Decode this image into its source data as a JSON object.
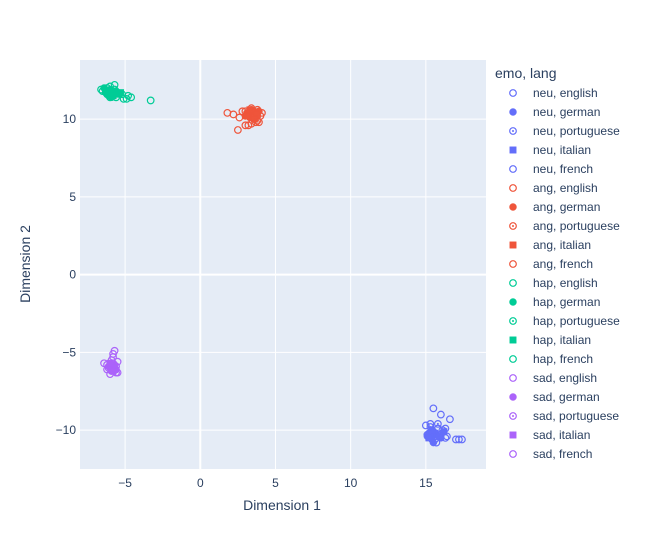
{
  "chart_data": {
    "type": "scatter",
    "title": "",
    "xlabel": "Dimension 1",
    "ylabel": "Dimension 2",
    "xlim": [
      -8,
      19
    ],
    "ylim": [
      -12.5,
      13.8
    ],
    "x_ticks": [
      -5,
      0,
      5,
      10,
      15
    ],
    "y_ticks": [
      -10,
      -5,
      0,
      5,
      10
    ],
    "x_tick_labels": [
      "−5",
      "0",
      "5",
      "10",
      "15"
    ],
    "y_tick_labels": [
      "−10",
      "−5",
      "0",
      "5",
      "10"
    ],
    "grid": true,
    "legend_title": "emo, lang",
    "legend_position": "right",
    "series": [
      {
        "name": "neu, english",
        "color": "#636efa",
        "symbol": "circle-open",
        "x": [
          15.5,
          16.0,
          16.6,
          17.2,
          17.4,
          15.3,
          15.8,
          15.1,
          16.3,
          15.6
        ],
        "y": [
          -8.6,
          -9.0,
          -9.3,
          -10.6,
          -10.6,
          -9.6,
          -9.9,
          -10.3,
          -10.5,
          -10.6
        ]
      },
      {
        "name": "neu, german",
        "color": "#636efa",
        "symbol": "circle",
        "x": [
          15.1,
          15.4,
          15.7,
          16.0,
          15.2,
          15.5
        ],
        "y": [
          -10.4,
          -10.6,
          -10.3,
          -10.5,
          -10.2,
          -10.8
        ]
      },
      {
        "name": "neu, portuguese",
        "color": "#636efa",
        "symbol": "circle-open-dot",
        "x": [
          15.3,
          15.8,
          16.1,
          15.6,
          16.3
        ],
        "y": [
          -9.8,
          -9.6,
          -10.0,
          -10.2,
          -9.9
        ]
      },
      {
        "name": "neu, italian",
        "color": "#636efa",
        "symbol": "square",
        "x": [
          15.2,
          15.6,
          15.9,
          16.2,
          15.4
        ],
        "y": [
          -10.5,
          -10.2,
          -10.4,
          -10.1,
          -10.0
        ]
      },
      {
        "name": "neu, french",
        "color": "#636efa",
        "symbol": "circle-open",
        "x": [
          15.0,
          15.5,
          16.0,
          16.4,
          17.0,
          15.7
        ],
        "y": [
          -9.7,
          -10.1,
          -10.3,
          -10.4,
          -10.6,
          -10.8
        ]
      },
      {
        "name": "ang, english",
        "color": "#ef553b",
        "symbol": "circle-open",
        "x": [
          2.5,
          3.2,
          3.8,
          4.0,
          2.8,
          3.5,
          2.2,
          3.9
        ],
        "y": [
          9.3,
          9.6,
          9.9,
          10.2,
          10.5,
          10.1,
          10.3,
          9.8
        ]
      },
      {
        "name": "ang, german",
        "color": "#ef553b",
        "symbol": "circle",
        "x": [
          3.1,
          3.4,
          3.7,
          3.3,
          3.9,
          3.0
        ],
        "y": [
          10.4,
          10.6,
          10.3,
          10.1,
          10.5,
          10.2
        ]
      },
      {
        "name": "ang, portuguese",
        "color": "#ef553b",
        "symbol": "circle-open-dot",
        "x": [
          3.2,
          3.6,
          3.0,
          3.8,
          3.4
        ],
        "y": [
          10.3,
          10.0,
          10.5,
          10.6,
          9.7
        ]
      },
      {
        "name": "ang, italian",
        "color": "#ef553b",
        "symbol": "square",
        "x": [
          3.1,
          3.5,
          3.8,
          3.3,
          3.6
        ],
        "y": [
          10.2,
          10.5,
          10.3,
          10.6,
          10.0
        ]
      },
      {
        "name": "ang, french",
        "color": "#ef553b",
        "symbol": "circle-open",
        "x": [
          1.8,
          2.6,
          3.0,
          3.7,
          4.1,
          3.4
        ],
        "y": [
          10.4,
          10.1,
          9.6,
          9.8,
          10.4,
          10.7
        ]
      },
      {
        "name": "hap, english",
        "color": "#00cc96",
        "symbol": "circle-open",
        "x": [
          -3.3,
          -4.6,
          -4.9,
          -5.7,
          -6.2,
          -6.5,
          -5.2
        ],
        "y": [
          11.2,
          11.4,
          11.3,
          12.2,
          12.0,
          11.8,
          11.6
        ]
      },
      {
        "name": "hap, german",
        "color": "#00cc96",
        "symbol": "circle",
        "x": [
          -6.3,
          -6.0,
          -5.8,
          -6.1,
          -5.6,
          -6.4,
          -5.9
        ],
        "y": [
          11.7,
          11.9,
          11.6,
          11.5,
          11.8,
          12.0,
          11.4
        ]
      },
      {
        "name": "hap, portuguese",
        "color": "#00cc96",
        "symbol": "circle-open-dot",
        "x": [
          -6.2,
          -5.9,
          -5.7,
          -6.0,
          -5.5
        ],
        "y": [
          11.8,
          11.6,
          11.9,
          11.4,
          11.7
        ]
      },
      {
        "name": "hap, italian",
        "color": "#00cc96",
        "symbol": "square",
        "x": [
          -6.1,
          -5.8,
          -5.4,
          -6.3,
          -5.3
        ],
        "y": [
          11.7,
          11.5,
          11.6,
          11.8,
          11.7
        ]
      },
      {
        "name": "hap, french",
        "color": "#00cc96",
        "symbol": "circle-open",
        "x": [
          -6.6,
          -6.0,
          -5.6,
          -4.8,
          -5.1,
          -6.2
        ],
        "y": [
          11.9,
          12.1,
          11.4,
          11.5,
          11.3,
          11.6
        ]
      },
      {
        "name": "sad, english",
        "color": "#ab63fa",
        "symbol": "circle-open",
        "x": [
          -5.7,
          -5.8,
          -6.2,
          -5.5,
          -6.0,
          -5.9
        ],
        "y": [
          -4.9,
          -5.1,
          -5.8,
          -5.6,
          -6.4,
          -6.2
        ]
      },
      {
        "name": "sad, german",
        "color": "#ab63fa",
        "symbol": "circle",
        "x": [
          -6.0,
          -5.7,
          -5.9,
          -5.6,
          -6.1
        ],
        "y": [
          -6.0,
          -5.8,
          -6.2,
          -6.1,
          -5.9
        ]
      },
      {
        "name": "sad, portuguese",
        "color": "#ab63fa",
        "symbol": "circle-open-dot",
        "x": [
          -5.8,
          -6.1,
          -5.6,
          -5.9
        ],
        "y": [
          -5.7,
          -6.0,
          -6.3,
          -5.5
        ]
      },
      {
        "name": "sad, italian",
        "color": "#ab63fa",
        "symbol": "square",
        "x": [
          -5.9,
          -5.7,
          -6.0,
          -5.8
        ],
        "y": [
          -5.9,
          -6.1,
          -5.7,
          -6.2
        ]
      },
      {
        "name": "sad, french",
        "color": "#ab63fa",
        "symbol": "circle-open",
        "x": [
          -6.4,
          -5.5,
          -5.8,
          -6.2,
          -5.6
        ],
        "y": [
          -5.7,
          -6.3,
          -5.3,
          -6.1,
          -5.9
        ]
      }
    ]
  }
}
